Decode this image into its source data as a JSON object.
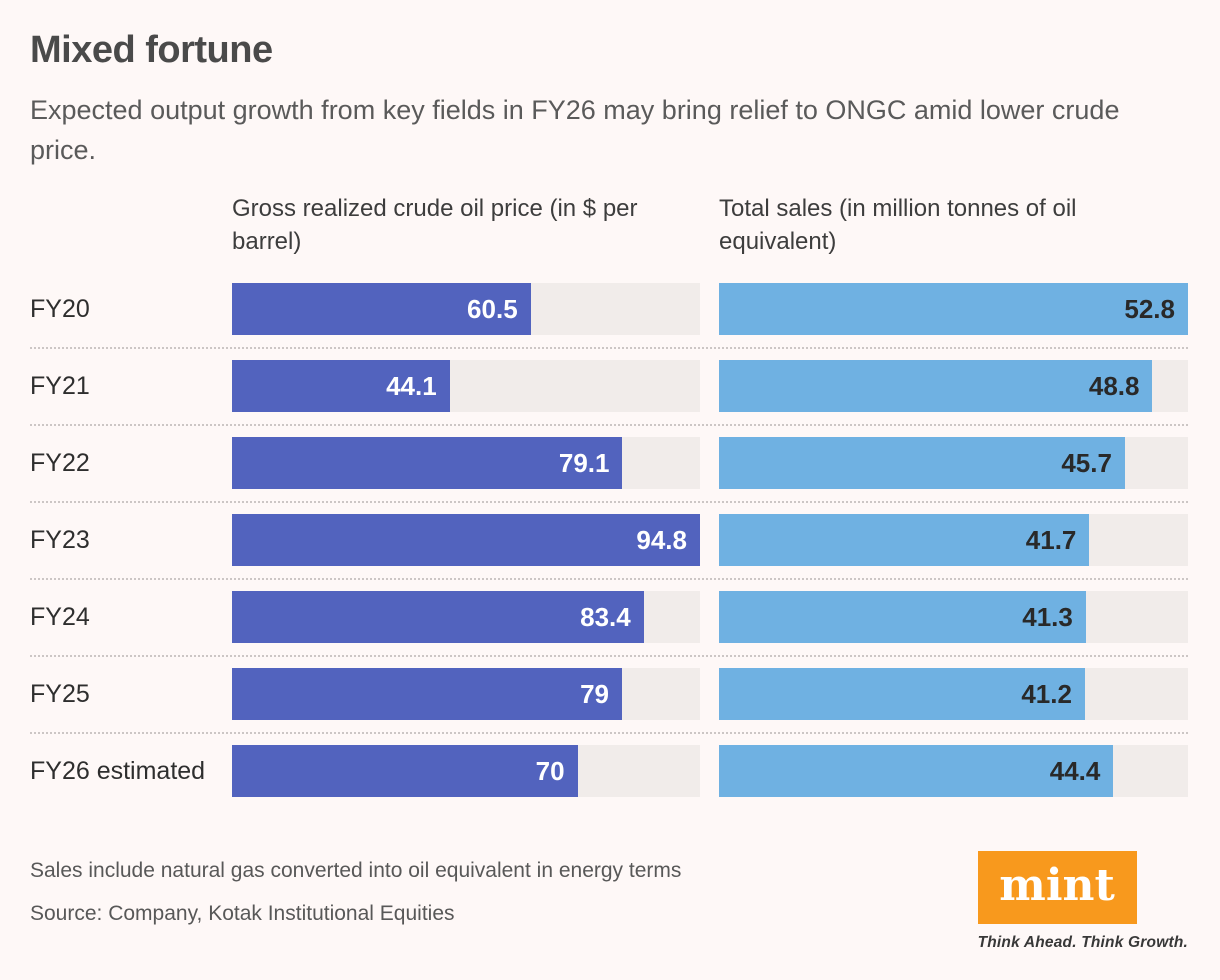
{
  "page": {
    "title": "Mixed fortune",
    "subtitle": "Expected output growth from key fields in FY26 may bring relief to ONGC amid lower crude price.",
    "footnote": "Sales include natural gas converted into oil equivalent in energy terms",
    "source": "Source: Company, Kotak Institutional Equities"
  },
  "brand": {
    "logo_text": "mint",
    "tagline": "Think Ahead. Think Growth."
  },
  "colors": {
    "background": "#FEF8F7",
    "crude_bar": "#5263BE",
    "sales_bar": "#6FB1E2",
    "bar_track": "#F1ECEA",
    "logo_orange": "#F8991D"
  },
  "chart_data": {
    "type": "bar",
    "orientation": "horizontal",
    "categories": [
      "FY20",
      "FY21",
      "FY22",
      "FY23",
      "FY24",
      "FY25",
      "FY26 estimated"
    ],
    "series": [
      {
        "name": "Gross realized crude oil price (in $ per barrel)",
        "values": [
          60.5,
          44.1,
          79.1,
          94.8,
          83.4,
          79,
          70
        ],
        "axis_max": 94.8,
        "value_label_position": "inside-end",
        "value_label_color": "white"
      },
      {
        "name": "Total sales (in million tonnes of oil equivalent)",
        "values": [
          52.8,
          48.8,
          45.7,
          41.7,
          41.3,
          41.2,
          44.4
        ],
        "axis_max": 52.8,
        "value_label_position": "inside-end",
        "value_label_color": "dark"
      }
    ],
    "grid": "off",
    "legend": "none"
  }
}
